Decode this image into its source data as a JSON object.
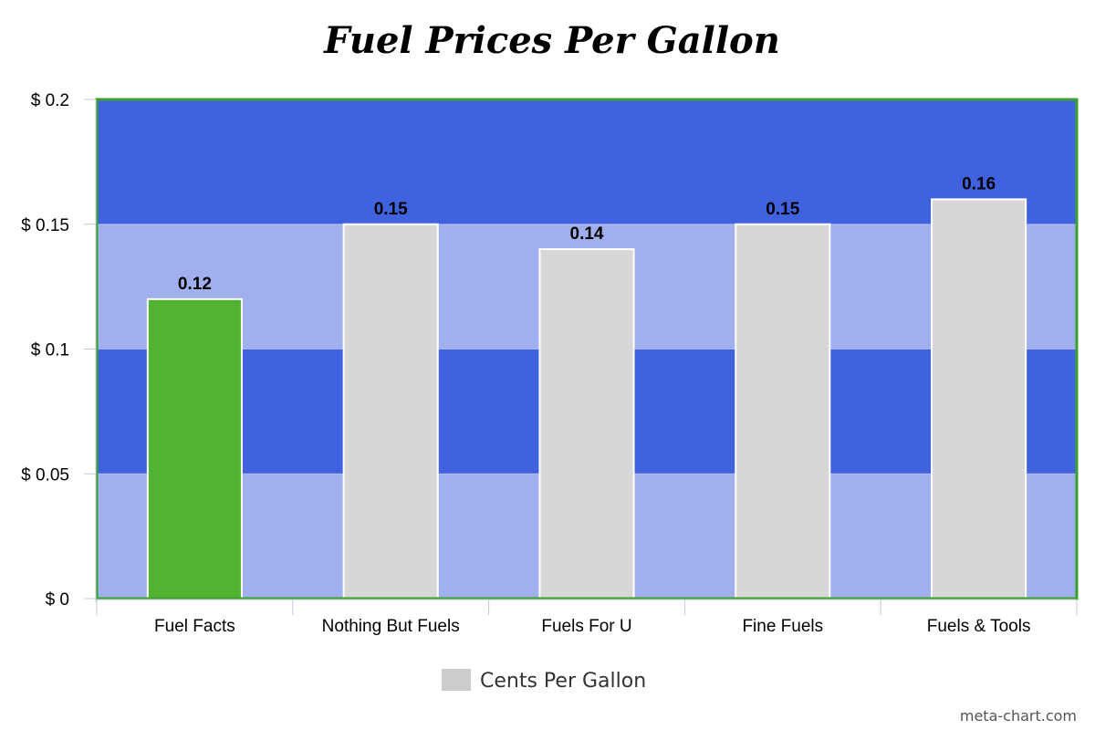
{
  "chart_data": {
    "type": "bar",
    "title": "Fuel Prices Per Gallon",
    "categories": [
      "Fuel Facts",
      "Nothing But Fuels",
      "Fuels For U",
      "Fine Fuels",
      "Fuels & Tools"
    ],
    "series": [
      {
        "name": "Cents Per Gallon",
        "values": [
          0.12,
          0.15,
          0.14,
          0.15,
          0.16
        ]
      }
    ],
    "data_labels": [
      "0.12",
      "0.15",
      "0.14",
      "0.15",
      "0.16"
    ],
    "ylim": [
      0,
      0.2
    ],
    "y_ticks": [
      0,
      0.05,
      0.1,
      0.15,
      0.2
    ],
    "y_tick_labels": [
      "$ 0",
      "$ 0.05",
      "$ 0.1",
      "$ 0.15",
      "$ 0.2"
    ],
    "xlabel": "",
    "ylabel": "",
    "legend_position": "bottom-center",
    "grid": true,
    "colors": {
      "band_dark": "#4162df",
      "band_light": "#a0b0ee",
      "bar_default": "#d7d7d7",
      "bar_highlight": "#52b232",
      "plot_border": "#3aa12d",
      "axis": "#c0cbd6",
      "legend_swatch": "#cccccc"
    },
    "highlight_index": 0
  },
  "credit": "meta-chart.com"
}
